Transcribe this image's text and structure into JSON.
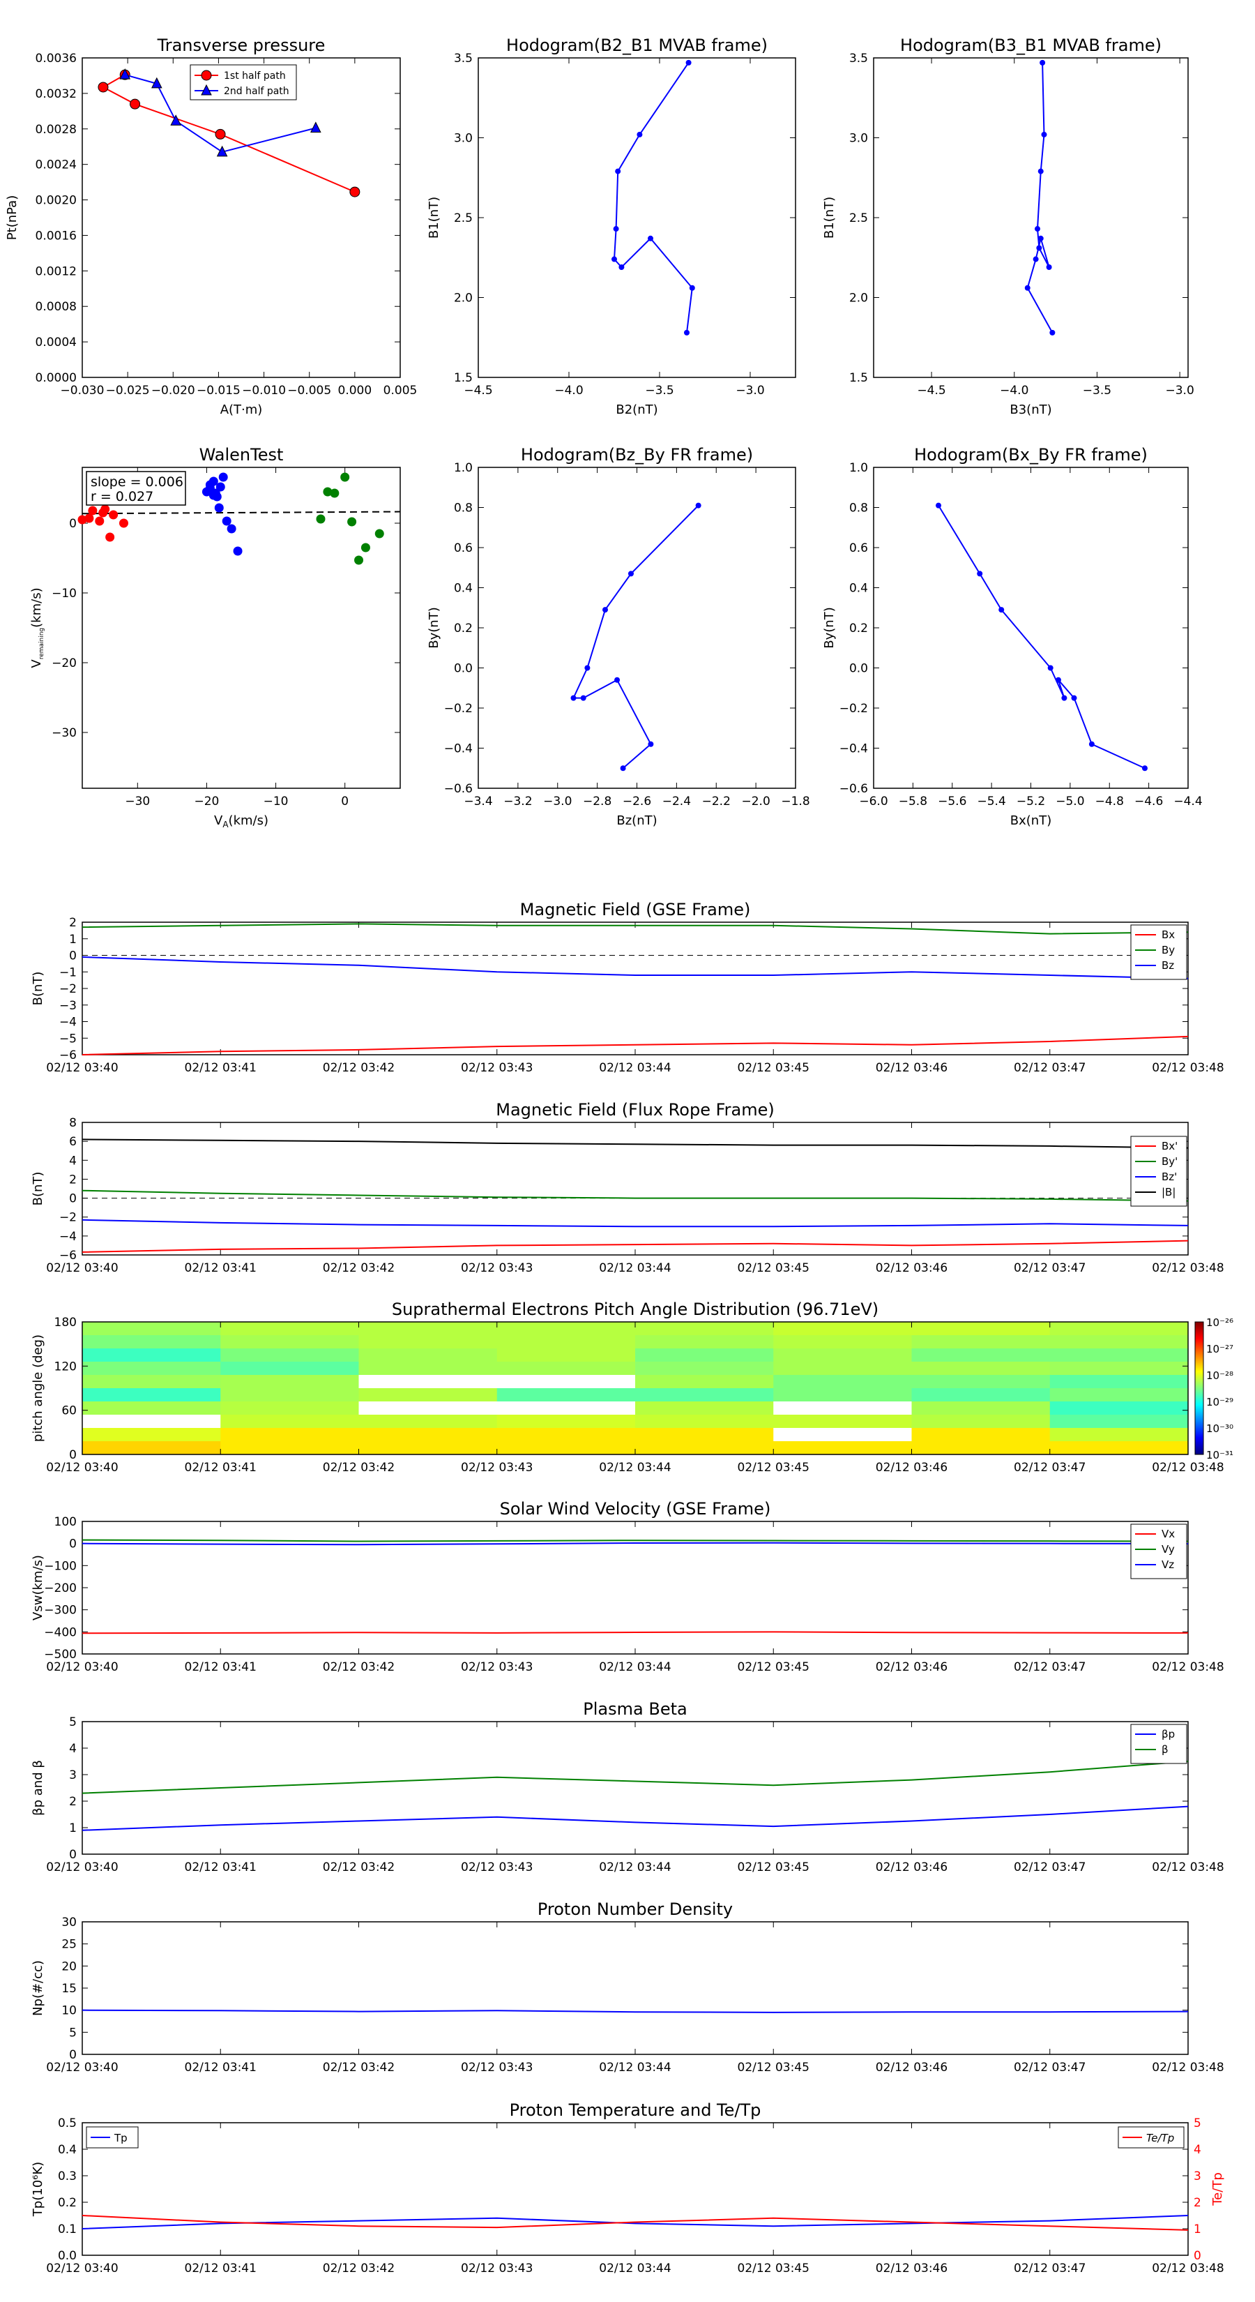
{
  "chart_data": [
    {
      "id": "transverse_pressure",
      "type": "line",
      "title": "Transverse pressure",
      "xlabel": "A(T·m)",
      "ylabel": "Pt(nPa)",
      "xlim": [
        -0.03,
        0.005
      ],
      "ylim": [
        0,
        0.0036
      ],
      "xticks": [
        -0.03,
        -0.025,
        -0.02,
        -0.015,
        -0.01,
        -0.005,
        0,
        0.005
      ],
      "xticklabels": [
        "−0.030",
        "−0.025",
        "−0.020",
        "−0.015",
        "−0.010",
        "−0.005",
        "0.000",
        "0.005"
      ],
      "yticks": [
        0,
        0.0004,
        0.0008,
        0.0012,
        0.0016,
        0.002,
        0.0024,
        0.0028,
        0.0032,
        0.0036
      ],
      "yticklabels": [
        "0.0000",
        "0.0004",
        "0.0008",
        "0.0012",
        "0.0016",
        "0.0020",
        "0.0024",
        "0.0028",
        "0.0032",
        "0.0036"
      ],
      "legend_position": "upper-center",
      "series": [
        {
          "name": "1st half path",
          "color": "#ff0000",
          "marker": "circle",
          "x": [
            -0.0253,
            -0.0277,
            -0.0242,
            -0.0148,
            0.0
          ],
          "y": [
            0.00341,
            0.00327,
            0.00308,
            0.00274,
            0.00209
          ]
        },
        {
          "name": "2nd half path",
          "color": "#0000ff",
          "marker": "triangle",
          "x": [
            -0.0253,
            -0.0218,
            -0.0197,
            -0.0146,
            -0.0043
          ],
          "y": [
            0.00341,
            0.00331,
            0.00289,
            0.00254,
            0.00281
          ]
        }
      ]
    },
    {
      "id": "hodogram_b2b1",
      "type": "line",
      "title": "Hodogram(B2_B1 MVAB frame)",
      "xlabel": "B2(nT)",
      "ylabel": "B1(nT)",
      "xlim": [
        -4.5,
        -2.75
      ],
      "ylim": [
        1.5,
        3.5
      ],
      "xticks": [
        -4.5,
        -4.0,
        -3.5,
        -3.0
      ],
      "xticklabels": [
        "−4.5",
        "−4.0",
        "−3.5",
        "−3.0"
      ],
      "yticks": [
        1.5,
        2.0,
        2.5,
        3.0,
        3.5
      ],
      "yticklabels": [
        "1.5",
        "2.0",
        "2.5",
        "3.0",
        "3.5"
      ],
      "series": [
        {
          "color": "#0000ff",
          "marker": "dot",
          "x": [
            -3.35,
            -3.32,
            -3.55,
            -3.71,
            -3.75,
            -3.74,
            -3.73,
            -3.61,
            -3.34
          ],
          "y": [
            1.78,
            2.06,
            2.37,
            2.19,
            2.24,
            2.43,
            2.79,
            3.02,
            3.47
          ]
        }
      ]
    },
    {
      "id": "hodogram_b3b1",
      "type": "line",
      "title": "Hodogram(B3_B1 MVAB frame)",
      "xlabel": "B3(nT)",
      "ylabel": "B1(nT)",
      "xlim": [
        -4.85,
        -2.95
      ],
      "ylim": [
        1.5,
        3.5
      ],
      "xticks": [
        -4.5,
        -4.0,
        -3.5,
        -3.0
      ],
      "xticklabels": [
        "−4.5",
        "−4.0",
        "−3.5",
        "−3.0"
      ],
      "yticks": [
        1.5,
        2.0,
        2.5,
        3.0,
        3.5
      ],
      "yticklabels": [
        "1.5",
        "2.0",
        "2.5",
        "3.0",
        "3.5"
      ],
      "series": [
        {
          "color": "#0000ff",
          "marker": "dot",
          "x": [
            -3.77,
            -3.92,
            -3.87,
            -3.84,
            -3.79,
            -3.85,
            -3.86,
            -3.84,
            -3.82,
            -3.83
          ],
          "y": [
            1.78,
            2.06,
            2.24,
            2.37,
            2.19,
            2.31,
            2.43,
            2.79,
            3.02,
            3.47
          ]
        }
      ]
    },
    {
      "id": "walen_test",
      "type": "scatter",
      "title": "WalenTest",
      "xlabel": "V_A(km/s)",
      "ylabel": "V_remaining(km/s)",
      "xlim": [
        -38,
        8
      ],
      "ylim": [
        -38,
        8
      ],
      "xticks": [
        -30,
        -20,
        -10,
        0
      ],
      "xticklabels": [
        "−30",
        "−20",
        "−10",
        "0"
      ],
      "yticks": [
        -30,
        -20,
        -10,
        0
      ],
      "yticklabels": [
        "−30",
        "−20",
        "−10",
        "0"
      ],
      "annotations": [
        "slope = 0.006",
        "r = 0.027"
      ],
      "fit_line": {
        "slope": 0.006,
        "intercept": 1.6,
        "style": "dashed"
      },
      "series": [
        {
          "color": "#ff0000",
          "x": [
            -38,
            -37,
            -36.5,
            -35.5,
            -35,
            -34.7,
            -34,
            -33.5,
            -32
          ],
          "y": [
            0.5,
            0.7,
            1.8,
            0.3,
            1.5,
            2,
            -2,
            1.2,
            0
          ]
        },
        {
          "color": "#0000ff",
          "x": [
            -20,
            -19.5,
            -19,
            -18.7,
            -18.2,
            -17.6,
            -17.1,
            -16.4,
            -15.5,
            -19,
            -18,
            -18.5,
            -19.5
          ],
          "y": [
            4.5,
            5.5,
            6,
            4.3,
            2.2,
            6.6,
            0.3,
            -0.8,
            -4,
            4,
            5.2,
            3.8,
            5
          ],
          "note": ""
        },
        {
          "color": "#008000",
          "x": [
            -3.5,
            -2.5,
            -1.5,
            -1,
            0,
            1,
            2,
            3,
            5
          ],
          "y": [
            0.6,
            4.5,
            4.3,
            8.2,
            6.6,
            0.2,
            -5.3,
            -3.5,
            -1.5
          ]
        }
      ]
    },
    {
      "id": "hodogram_bzby",
      "type": "line",
      "title": "Hodogram(Bz_By FR frame)",
      "xlabel": "Bz(nT)",
      "ylabel": "By(nT)",
      "xlim": [
        -3.4,
        -1.8
      ],
      "ylim": [
        -0.6,
        1.0
      ],
      "xticks": [
        -3.4,
        -3.2,
        -3.0,
        -2.8,
        -2.6,
        -2.4,
        -2.2,
        -2.0,
        -1.8
      ],
      "xticklabels": [
        "−3.4",
        "−3.2",
        "−3.0",
        "−2.8",
        "−2.6",
        "−2.4",
        "−2.2",
        "−2.0",
        "−1.8"
      ],
      "yticks": [
        -0.6,
        -0.4,
        -0.2,
        0,
        0.2,
        0.4,
        0.6,
        0.8,
        1.0
      ],
      "yticklabels": [
        "−0.6",
        "−0.4",
        "−0.2",
        "0.0",
        "0.2",
        "0.4",
        "0.6",
        "0.8",
        "1.0"
      ],
      "series": [
        {
          "color": "#0000ff",
          "marker": "dot",
          "x": [
            -2.67,
            -2.53,
            -2.7,
            -2.87,
            -2.92,
            -2.85,
            -2.76,
            -2.63,
            -2.29
          ],
          "y": [
            -0.5,
            -0.38,
            -0.06,
            -0.15,
            -0.15,
            0.0,
            0.29,
            0.47,
            0.81
          ]
        }
      ]
    },
    {
      "id": "hodogram_bxby",
      "type": "line",
      "title": "Hodogram(Bx_By FR frame)",
      "xlabel": "Bx(nT)",
      "ylabel": "By(nT)",
      "xlim": [
        -6.0,
        -4.4
      ],
      "ylim": [
        -0.6,
        1.0
      ],
      "xticks": [
        -6.0,
        -5.8,
        -5.6,
        -5.4,
        -5.2,
        -5.0,
        -4.8,
        -4.6,
        -4.4
      ],
      "xticklabels": [
        "−6.0",
        "−5.8",
        "−5.6",
        "−5.4",
        "−5.2",
        "−5.0",
        "−4.8",
        "−4.6",
        "−4.4"
      ],
      "yticks": [
        -0.6,
        -0.4,
        -0.2,
        0,
        0.2,
        0.4,
        0.6,
        0.8,
        1.0
      ],
      "yticklabels": [
        "−0.6",
        "−0.4",
        "−0.2",
        "0.0",
        "0.2",
        "0.4",
        "0.6",
        "0.8",
        "1.0"
      ],
      "series": [
        {
          "color": "#0000ff",
          "marker": "dot",
          "x": [
            -4.62,
            -4.89,
            -4.98,
            -5.06,
            -5.03,
            -5.1,
            -5.35,
            -5.46,
            -5.67
          ],
          "y": [
            -0.5,
            -0.38,
            -0.15,
            -0.06,
            -0.15,
            0.0,
            0.29,
            0.47,
            0.81
          ]
        }
      ]
    },
    {
      "id": "mag_gse",
      "type": "line",
      "title": "Magnetic Field (GSE Frame)",
      "xlabel": "",
      "ylabel": "B(nT)",
      "ylim": [
        -6,
        2
      ],
      "yticks": [
        -6,
        -5,
        -4,
        -3,
        -2,
        -1,
        0,
        1,
        2
      ],
      "yticklabels": [
        "−6",
        "−5",
        "−4",
        "−3",
        "−2",
        "−1",
        "0",
        "1",
        "2"
      ],
      "zero_line": true,
      "legend_position": "upper-right",
      "series": [
        {
          "name": "Bx",
          "color": "#ff0000",
          "y": [
            -6.0,
            -5.8,
            -5.7,
            -5.5,
            -5.4,
            -5.3,
            -5.4,
            -5.2,
            -4.9
          ]
        },
        {
          "name": "By",
          "color": "#008000",
          "y": [
            1.7,
            1.8,
            1.9,
            1.8,
            1.8,
            1.8,
            1.6,
            1.3,
            1.4
          ]
        },
        {
          "name": "Bz",
          "color": "#0000ff",
          "y": [
            -0.1,
            -0.4,
            -0.6,
            -1.0,
            -1.2,
            -1.2,
            -1.0,
            -1.2,
            -1.4
          ]
        }
      ]
    },
    {
      "id": "mag_fr",
      "type": "line",
      "title": "Magnetic Field (Flux Rope Frame)",
      "xlabel": "",
      "ylabel": "B(nT)",
      "ylim": [
        -6,
        8
      ],
      "yticks": [
        -6,
        -4,
        -2,
        0,
        2,
        4,
        6,
        8
      ],
      "yticklabels": [
        "−6",
        "−4",
        "−2",
        "0",
        "2",
        "4",
        "6",
        "8"
      ],
      "zero_line": true,
      "legend_position": "right",
      "series": [
        {
          "name": "Bx'",
          "color": "#ff0000",
          "y": [
            -5.7,
            -5.4,
            -5.3,
            -5.0,
            -4.9,
            -4.8,
            -5.0,
            -4.8,
            -4.5
          ]
        },
        {
          "name": "By'",
          "color": "#008000",
          "y": [
            0.8,
            0.5,
            0.3,
            0.1,
            0.0,
            0.0,
            0.0,
            -0.1,
            -0.3
          ]
        },
        {
          "name": "Bz'",
          "color": "#0000ff",
          "y": [
            -2.3,
            -2.6,
            -2.8,
            -2.9,
            -3.0,
            -3.0,
            -2.9,
            -2.7,
            -2.9
          ]
        },
        {
          "name": "|B|",
          "color": "#000000",
          "y": [
            6.2,
            6.1,
            6.0,
            5.8,
            5.7,
            5.6,
            5.6,
            5.5,
            5.3
          ]
        }
      ]
    },
    {
      "id": "pad",
      "type": "heatmap",
      "title": "Suprathermal Electrons Pitch Angle Distribution (96.71eV)",
      "xlabel": "",
      "ylabel": "pitch angle (deg)",
      "ylim": [
        0,
        180
      ],
      "yticks": [
        0,
        60,
        120,
        180
      ],
      "yticklabels": [
        "0",
        "60",
        "120",
        "180"
      ],
      "colorbar_labels": [
        "10⁻²⁶",
        "10⁻²⁷",
        "10⁻²⁸",
        "10⁻²⁹",
        "10⁻³⁰",
        "10⁻³¹"
      ],
      "log_scale": true,
      "rows_top_to_bottom": [
        [
          "#9eff5a",
          "#b6ff40",
          "#b6ff40",
          "#b6ff40",
          "#b6ff40",
          "#c7ff30",
          "#c7ff30",
          "#b6ff40"
        ],
        [
          "#7cff7c",
          "#a6ff50",
          "#b6ff40",
          "#b6ff40",
          "#a6ff50",
          "#b6ff40",
          "#a6ff50",
          "#a6ff50"
        ],
        [
          "#3cffc0",
          "#7cff7c",
          "#a6ff50",
          "#b6ff40",
          "#7cff7c",
          "#a6ff50",
          "#7cff7c",
          "#7cff7c"
        ],
        [
          "#7cff7c",
          "#5cffa0",
          "#a6ff50",
          "#a6ff50",
          "#90ff6a",
          "#a6ff50",
          "#a6ff50",
          "#9eff5a"
        ],
        [
          "#9eff5a",
          "#a6ff50",
          "#ffffff",
          "#ffffff",
          "#a6ff50",
          "#7cff7c",
          "#7cff7c",
          "#5cffa0"
        ],
        [
          "#3cffc0",
          "#a6ff50",
          "#b6ff40",
          "#5cffa0",
          "#5cffa0",
          "#7cff7c",
          "#5cffa0",
          "#7cff7c"
        ],
        [
          "#a6ff50",
          "#b6ff40",
          "#ffffff",
          "#ffffff",
          "#b6ff40",
          "#ffffff",
          "#a6ff50",
          "#3cffc0"
        ],
        [
          "#ffffff",
          "#c7ff30",
          "#c7ff30",
          "#d4ff26",
          "#c7ff30",
          "#c7ff30",
          "#b6ff40",
          "#5cffa0"
        ],
        [
          "#e0ff20",
          "#ffea00",
          "#ffea00",
          "#ffea00",
          "#ffea00",
          "#ffffff",
          "#ffea00",
          "#c7ff30"
        ],
        [
          "#ffd400",
          "#ffea00",
          "#ffea00",
          "#ffea00",
          "#ffea00",
          "#ffea00",
          "#ffea00",
          "#ffea00"
        ]
      ]
    },
    {
      "id": "vsw",
      "type": "line",
      "title": "Solar Wind Velocity (GSE Frame)",
      "xlabel": "",
      "ylabel": "Vsw(km/s)",
      "ylim": [
        -500,
        100
      ],
      "yticks": [
        -500,
        -400,
        -300,
        -200,
        -100,
        0,
        100
      ],
      "yticklabels": [
        "−500",
        "−400",
        "−300",
        "−200",
        "−100",
        "0",
        "100"
      ],
      "legend_position": "upper-right",
      "series": [
        {
          "name": "Vx",
          "color": "#ff0000",
          "y": [
            -406,
            -405,
            -403,
            -405,
            -402,
            -400,
            -403,
            -404,
            -405
          ]
        },
        {
          "name": "Vy",
          "color": "#008000",
          "y": [
            16,
            14,
            10,
            12,
            14,
            13,
            12,
            11,
            10
          ]
        },
        {
          "name": "Vz",
          "color": "#0000ff",
          "y": [
            0,
            -3,
            -5,
            -2,
            2,
            3,
            1,
            0,
            -1
          ]
        }
      ]
    },
    {
      "id": "beta",
      "type": "line",
      "title": "Plasma Beta",
      "xlabel": "",
      "ylabel": "βp and β",
      "ylim": [
        0,
        5
      ],
      "yticks": [
        0,
        1,
        2,
        3,
        4,
        5
      ],
      "yticklabels": [
        "0",
        "1",
        "2",
        "3",
        "4",
        "5"
      ],
      "legend_position": "upper-right",
      "series": [
        {
          "name": "βp",
          "color": "#0000ff",
          "y": [
            0.9,
            1.1,
            1.25,
            1.4,
            1.2,
            1.05,
            1.25,
            1.5,
            1.8
          ]
        },
        {
          "name": "β",
          "color": "#008000",
          "y": [
            2.3,
            2.5,
            2.7,
            2.9,
            2.75,
            2.6,
            2.8,
            3.1,
            3.5
          ]
        }
      ]
    },
    {
      "id": "np",
      "type": "line",
      "title": "Proton Number Density",
      "xlabel": "",
      "ylabel": "Np(#/cc)",
      "ylim": [
        0,
        30
      ],
      "yticks": [
        0,
        5,
        10,
        15,
        20,
        25,
        30
      ],
      "yticklabels": [
        "0",
        "5",
        "10",
        "15",
        "20",
        "25",
        "30"
      ],
      "series": [
        {
          "name": "Np",
          "color": "#0000ff",
          "y": [
            10.0,
            9.9,
            9.7,
            9.9,
            9.6,
            9.5,
            9.6,
            9.6,
            9.7
          ]
        }
      ]
    },
    {
      "id": "tp",
      "type": "line",
      "title": "Proton Temperature and Te/Tp",
      "xlabel": "",
      "ylabel": "Tp(10⁶K)",
      "ylim": [
        0,
        0.5
      ],
      "yticks": [
        0,
        0.1,
        0.2,
        0.3,
        0.4,
        0.5
      ],
      "yticklabels": [
        "0.0",
        "0.1",
        "0.2",
        "0.3",
        "0.4",
        "0.5"
      ],
      "y2label": "Te/Tp",
      "y2lim": [
        0,
        5
      ],
      "y2ticks": [
        0,
        1,
        2,
        3,
        4,
        5
      ],
      "y2ticklabels": [
        "0",
        "1",
        "2",
        "3",
        "4",
        "5"
      ],
      "legend_left": "Tp",
      "legend_right": "Te/Tp",
      "series": [
        {
          "name": "Tp",
          "color": "#0000ff",
          "axis": "left",
          "y": [
            0.1,
            0.12,
            0.13,
            0.14,
            0.12,
            0.11,
            0.12,
            0.13,
            0.15
          ]
        },
        {
          "name": "Te/Tp",
          "color": "#ff0000",
          "axis": "right",
          "y": [
            1.5,
            1.25,
            1.1,
            1.05,
            1.25,
            1.4,
            1.25,
            1.1,
            0.95
          ]
        }
      ]
    }
  ],
  "time_axis": {
    "labels": [
      "02/12 03:40",
      "02/12 03:41",
      "02/12 03:42",
      "02/12 03:43",
      "02/12 03:44",
      "02/12 03:45",
      "02/12 03:46",
      "02/12 03:47",
      "02/12 03:48"
    ]
  }
}
